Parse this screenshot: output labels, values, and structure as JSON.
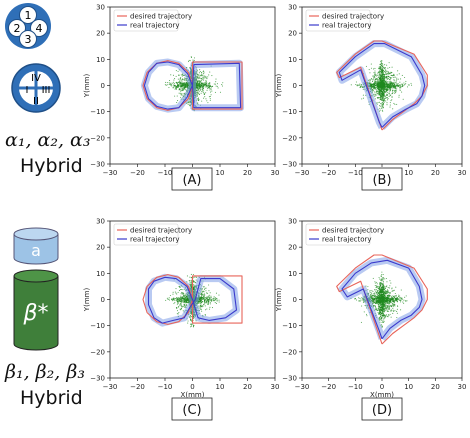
{
  "left_panel": {
    "top_diagram_labels": [
      "1",
      "2",
      "3",
      "4"
    ],
    "bottom_diagram_labels": [
      "I",
      "II",
      "III",
      "IV"
    ],
    "top_caption_math": "α₁, α₂, α₃",
    "top_caption_word": "Hybrid",
    "cylinder_top_label": "a",
    "cylinder_body_label": "β*",
    "bottom_caption_math": "β₁, β₂, β₃",
    "bottom_caption_word": "Hybrid"
  },
  "colors": {
    "desired": "#e8645a",
    "real": "#3b3bcc",
    "band": "#7f9fe8",
    "points": "#1f8a1f",
    "diagram_fill": "#2f6fb7",
    "cylinder_top": "#9dc3e6",
    "cylinder_body": "#3f7f3a"
  },
  "chart_data": [
    {
      "panel": "(A)",
      "type": "line",
      "trajectory": "circle-square",
      "xlabel": "X(mm)",
      "ylabel": "Y(mm)",
      "xlim": [
        -30,
        30
      ],
      "ylim": [
        -30,
        30
      ],
      "xticks": [
        -30,
        -20,
        -10,
        0,
        10,
        20,
        30
      ],
      "yticks": [
        -30,
        -20,
        -10,
        0,
        10,
        20,
        30
      ],
      "legend": [
        "desired trajectory",
        "real trajectory"
      ],
      "legend_position": "top-left",
      "grid": false,
      "series": [
        {
          "name": "desired trajectory",
          "x": [
            0,
            -1.5,
            -5,
            -9,
            -13,
            -16.5,
            -18,
            -16.5,
            -13,
            -9,
            -5,
            -1.5,
            0,
            0,
            18,
            18,
            0,
            0
          ],
          "y": [
            0,
            5,
            8.5,
            9.5,
            8.5,
            5,
            0,
            -5,
            -8.5,
            -9.5,
            -8.5,
            -5,
            0,
            9,
            9,
            -9,
            -9,
            0
          ]
        },
        {
          "name": "real trajectory",
          "x": [
            0,
            -1.8,
            -5,
            -9,
            -13,
            -16,
            -17.5,
            -16,
            -13,
            -9,
            -5,
            -2,
            0,
            0.5,
            17,
            17.5,
            0.5,
            0
          ],
          "y": [
            0,
            4.5,
            8,
            9,
            8.5,
            5,
            0,
            -5,
            -8,
            -9,
            -8.5,
            -4.5,
            0,
            8,
            8.5,
            -8.5,
            -8.5,
            0
          ]
        }
      ]
    },
    {
      "panel": "(B)",
      "type": "line",
      "trajectory": "circle-square",
      "xlabel": "X(mm)",
      "ylabel": "Y(mm)",
      "xlim": [
        -30,
        30
      ],
      "ylim": [
        -30,
        30
      ],
      "xticks": [
        -30,
        -20,
        -10,
        0,
        10,
        20,
        30
      ],
      "yticks": [
        -30,
        -20,
        -10,
        0,
        10,
        20,
        30
      ],
      "legend": [
        "desired trajectory",
        "real trajectory"
      ],
      "legend_position": "top-left",
      "grid": false,
      "series": [
        {
          "name": "desired trajectory",
          "x": [
            0,
            4,
            8,
            12,
            15,
            17,
            17,
            12,
            0,
            -3,
            -10,
            -17,
            -16,
            -8,
            0
          ],
          "y": [
            -17,
            -13,
            -10,
            -7,
            -4,
            0,
            4,
            12,
            17,
            17,
            12,
            5,
            3,
            7,
            -17
          ]
        },
        {
          "name": "real trajectory",
          "x": [
            0,
            4,
            9,
            13,
            15,
            16,
            15,
            11,
            1,
            -3,
            -10,
            -16,
            -15,
            -8,
            -1,
            0
          ],
          "y": [
            -16,
            -12,
            -9,
            -7,
            -4,
            0,
            4,
            11,
            16,
            16,
            11,
            5,
            2,
            6,
            -14,
            -16
          ]
        }
      ]
    },
    {
      "panel": "(C)",
      "type": "line",
      "trajectory": "circle-square",
      "xlabel": "X(mm)",
      "ylabel": "Y(mm)",
      "xlim": [
        -30,
        30
      ],
      "ylim": [
        -30,
        30
      ],
      "xticks": [
        -30,
        -20,
        -10,
        0,
        10,
        20,
        30
      ],
      "yticks": [
        -30,
        -20,
        -10,
        0,
        10,
        20,
        30
      ],
      "legend": [
        "desired trajectory",
        "real trajectory"
      ],
      "legend_position": "top-left",
      "grid": false,
      "series": [
        {
          "name": "desired trajectory",
          "x": [
            0,
            -1.5,
            -5,
            -9,
            -13,
            -16.5,
            -18,
            -16.5,
            -13,
            -9,
            -5,
            -1.5,
            0,
            0,
            18,
            18,
            0,
            0
          ],
          "y": [
            0,
            5,
            8.5,
            9.5,
            8.5,
            5,
            0,
            -5,
            -8.5,
            -9.5,
            -8.5,
            -5,
            0,
            9,
            9,
            -9,
            -9,
            0
          ]
        },
        {
          "name": "real trajectory",
          "x": [
            0,
            -2,
            -6,
            -10,
            -14,
            -16,
            -16,
            -14,
            -11,
            -7,
            -3,
            -1,
            1,
            3,
            10,
            15,
            16,
            12,
            6,
            2,
            0
          ],
          "y": [
            0,
            5,
            8,
            8.5,
            7,
            4,
            -2,
            -7,
            -9,
            -8,
            -7,
            -3,
            0,
            8,
            8,
            4,
            -4,
            -7,
            -8,
            -7,
            0
          ]
        }
      ]
    },
    {
      "panel": "(D)",
      "type": "line",
      "trajectory": "circle-square",
      "xlabel": "X(mm)",
      "ylabel": "Y(mm)",
      "xlim": [
        -30,
        30
      ],
      "ylim": [
        -30,
        30
      ],
      "xticks": [
        -30,
        -20,
        -10,
        0,
        10,
        20,
        30
      ],
      "yticks": [
        -30,
        -20,
        -10,
        0,
        10,
        20,
        30
      ],
      "legend": [
        "desired trajectory",
        "real trajectory"
      ],
      "legend_position": "top-left",
      "grid": false,
      "series": [
        {
          "name": "desired trajectory",
          "x": [
            0,
            4,
            8,
            12,
            15,
            17,
            17,
            12,
            0,
            -3,
            -10,
            -17,
            -16,
            -8,
            0
          ],
          "y": [
            -17,
            -13,
            -10,
            -7,
            -4,
            0,
            4,
            12,
            17,
            17,
            12,
            5,
            3,
            7,
            -17
          ]
        },
        {
          "name": "real trajectory",
          "x": [
            0,
            3,
            7,
            11,
            14,
            15,
            14,
            10,
            2,
            -4,
            -10,
            -15,
            -13,
            -7,
            -1,
            0
          ],
          "y": [
            -15,
            -11,
            -8,
            -6,
            -3,
            0,
            5,
            12,
            15,
            14,
            10,
            4,
            1,
            4,
            -12,
            -15
          ]
        }
      ]
    }
  ]
}
